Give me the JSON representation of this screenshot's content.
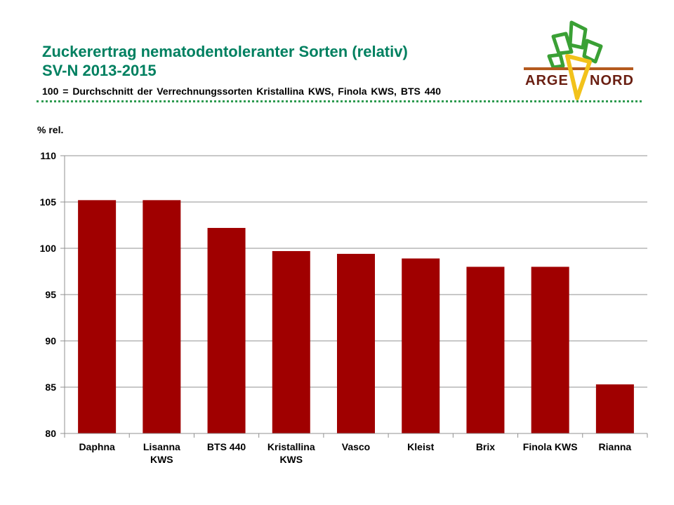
{
  "header": {
    "title_line1": "Zuckerertrag nematodentoleranter Sorten (relativ)",
    "title_line2": "SV-N 2013-2015",
    "subtitle": "100 = Durchschnitt der Verrechnungssorten Kristallina KWS, Finola KWS, BTS 440"
  },
  "logo": {
    "text_left": "ARGE",
    "text_right": "NORD",
    "colors": {
      "leaf": "#3aa035",
      "root": "#f2c21b",
      "text": "#6a1f12",
      "band": "#b45a1e"
    }
  },
  "colors": {
    "title": "#008060",
    "bar": "#a00000",
    "grid": "#909090",
    "divider": "#2e9a50"
  },
  "chart_data": {
    "type": "bar",
    "title": "Zuckerertrag nematodentoleranter Sorten (relativ)",
    "ylabel": "% rel.",
    "xlabel": "",
    "categories": [
      [
        "Daphna"
      ],
      [
        "Lisanna",
        "KWS"
      ],
      [
        "BTS 440"
      ],
      [
        "Kristallina",
        "KWS"
      ],
      [
        "Vasco"
      ],
      [
        "Kleist"
      ],
      [
        "Brix"
      ],
      [
        "Finola KWS"
      ],
      [
        "Rianna"
      ]
    ],
    "values": [
      105.2,
      105.2,
      102.2,
      99.7,
      99.4,
      98.9,
      98.0,
      98.0,
      85.3
    ],
    "ylim": [
      80,
      110
    ],
    "yticks": [
      80,
      85,
      90,
      95,
      100,
      105,
      110
    ],
    "grid": true,
    "legend": "none"
  }
}
